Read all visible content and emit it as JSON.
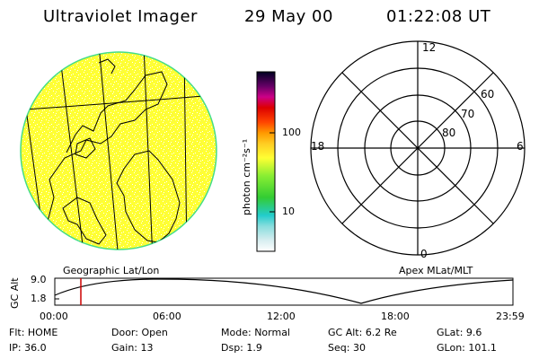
{
  "header": {
    "title": "Ultraviolet Imager",
    "date": "29 May 00",
    "time": "01:22:08 UT"
  },
  "colorbar": {
    "unit_label": "photon cm⁻²s⁻¹",
    "ticks": [
      "100",
      "10"
    ]
  },
  "polar": {
    "mlt_labels": {
      "top": "12",
      "right": "6",
      "bottom": "0",
      "left": "18"
    },
    "lat_labels": [
      "60",
      "70",
      "80"
    ]
  },
  "projection_labels": {
    "left": "Geographic Lat/Lon",
    "right": "Apex MLat/MLT"
  },
  "orbit_plot": {
    "ylabel": "GC Alt",
    "y_ticks": [
      "9.0",
      "1.8"
    ],
    "x_ticks": [
      "00:00",
      "06:00",
      "12:00",
      "18:00",
      "23:59"
    ],
    "current_time": "01:22"
  },
  "status": {
    "row1": [
      {
        "label": "Flt:",
        "value": "HOME"
      },
      {
        "label": "Door:",
        "value": "Open"
      },
      {
        "label": "Mode:",
        "value": "Normal"
      },
      {
        "label": "GC Alt:",
        "value": "6.2 Re"
      },
      {
        "label": "GLat:",
        "value": "9.6"
      }
    ],
    "row2": [
      {
        "label": "IP:",
        "value": "36.0"
      },
      {
        "label": "Gain:",
        "value": "13"
      },
      {
        "label": "Dsp:",
        "value": "1.9"
      },
      {
        "label": "Seq:",
        "value": "30"
      },
      {
        "label": "GLon:",
        "value": "101.1"
      }
    ]
  },
  "colors": {
    "disk_fill": "#ffff33",
    "disk_edge": "#44dd88",
    "time_marker": "#cc0000"
  }
}
